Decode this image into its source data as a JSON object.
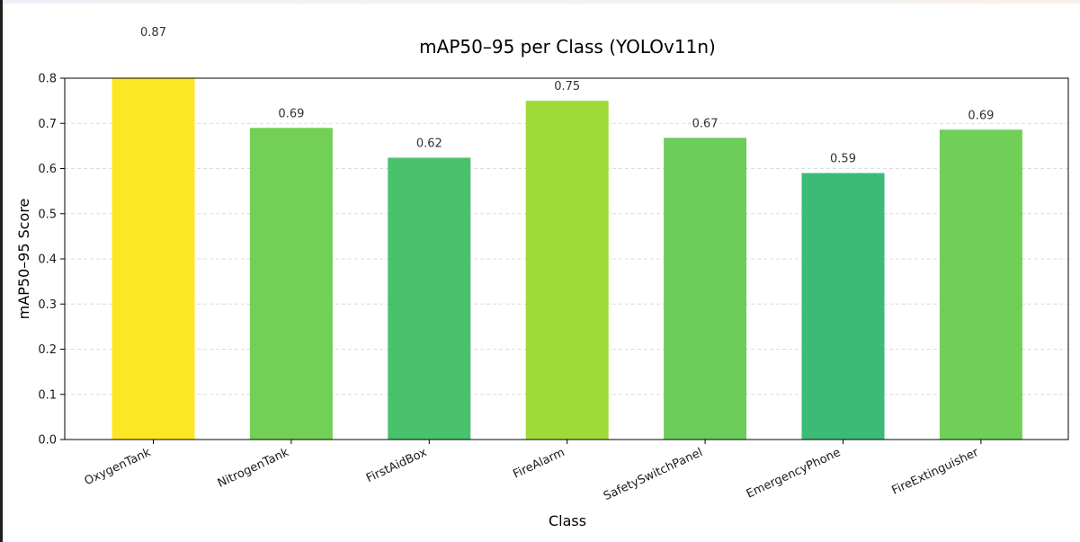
{
  "chart_data": {
    "type": "bar",
    "title": "mAP50–95 per Class (YOLOv11n)",
    "xlabel": "Class",
    "ylabel": "mAP50–95 Score",
    "categories": [
      "OxygenTank",
      "NitrogenTank",
      "FirstAidBox",
      "FireAlarm",
      "SafetySwitchPanel",
      "EmergencyPhone",
      "FireExtinguisher"
    ],
    "values": [
      0.87,
      0.69,
      0.624,
      0.75,
      0.668,
      0.59,
      0.686
    ],
    "value_labels": [
      "0.87",
      "0.69",
      "0.62",
      "0.75",
      "0.67",
      "0.59",
      "0.69"
    ],
    "colors": [
      "#fde725",
      "#73d056",
      "#4ac16d",
      "#a0da39",
      "#6ccd5a",
      "#3bbb75",
      "#70cf57"
    ],
    "ylim": [
      0,
      0.8
    ],
    "yticks": [
      0.0,
      0.1,
      0.2,
      0.3,
      0.4,
      0.5,
      0.6,
      0.7,
      0.8
    ],
    "ytick_labels": [
      "0.0",
      "0.1",
      "0.2",
      "0.3",
      "0.4",
      "0.5",
      "0.6",
      "0.7",
      "0.8"
    ],
    "grid": "y-dashed",
    "xtick_rotation": 25,
    "legend": "none"
  }
}
